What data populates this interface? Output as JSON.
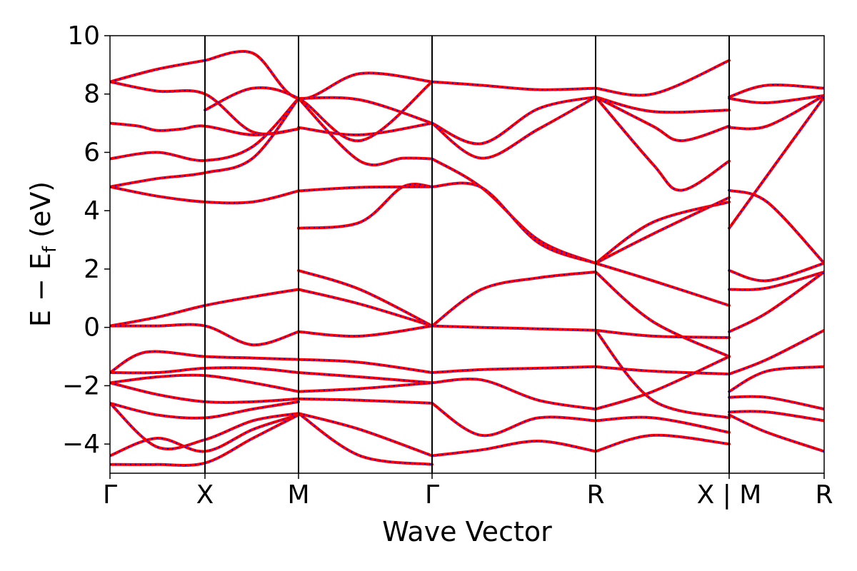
{
  "chart_data": {
    "type": "line",
    "title": "",
    "xlabel": "Wave Vector",
    "ylabel_parts": {
      "main": "E − E",
      "sub": "f",
      "unit": " (eV)"
    },
    "ylim": [
      -5,
      10
    ],
    "yticks": [
      -4,
      -2,
      0,
      2,
      4,
      6,
      8,
      10
    ],
    "ytick_labels": [
      "−4",
      "−2",
      "0",
      "2",
      "4",
      "6",
      "8",
      "10"
    ],
    "kpath_distance_range": [
      0,
      1
    ],
    "high_symmetry_points": [
      {
        "label": "Γ",
        "position": 0.0
      },
      {
        "label": "X",
        "position": 0.133
      },
      {
        "label": "M",
        "position": 0.264
      },
      {
        "label": "Γ",
        "position": 0.451
      },
      {
        "label": "R",
        "position": 0.68
      },
      {
        "label": "X | M",
        "position": 0.867
      },
      {
        "label": "R",
        "position": 1.0
      }
    ],
    "styles": {
      "band_color": "#ff0000",
      "overlay_color": "#0000ff",
      "vline_color": "#000000"
    },
    "series_note_visible": false,
    "bands": [
      {
        "x": [
          0,
          0.066,
          0.133
        ],
        "y": [
          8.42,
          8.85,
          9.15
        ]
      },
      {
        "x": [
          0,
          0.066,
          0.133,
          0.2,
          0.264
        ],
        "y": [
          8.42,
          8.1,
          8.0,
          6.7,
          6.8
        ]
      },
      {
        "x": [
          0,
          0.04,
          0.066,
          0.1,
          0.133,
          0.2,
          0.264
        ],
        "y": [
          7.0,
          6.9,
          6.75,
          6.8,
          6.9,
          6.6,
          6.8
        ]
      },
      {
        "x": [
          0,
          0.066,
          0.133,
          0.2,
          0.264
        ],
        "y": [
          5.78,
          6.0,
          5.72,
          6.2,
          7.85
        ]
      },
      {
        "x": [
          0,
          0.066,
          0.133,
          0.2,
          0.264
        ],
        "y": [
          4.82,
          5.1,
          5.3,
          5.8,
          7.85
        ]
      },
      {
        "x": [
          0,
          0.066,
          0.133,
          0.2,
          0.264
        ],
        "y": [
          4.82,
          4.5,
          4.3,
          4.3,
          4.68
        ]
      },
      {
        "x": [
          0,
          0.066,
          0.133,
          0.2,
          0.264
        ],
        "y": [
          0.05,
          0.35,
          0.75,
          1.05,
          1.3
        ]
      },
      {
        "x": [
          0,
          0.066,
          0.133,
          0.2,
          0.264
        ],
        "y": [
          0.05,
          0.05,
          0.05,
          -0.6,
          -0.15
        ]
      },
      {
        "x": [
          0,
          0.05,
          0.133,
          0.2,
          0.264
        ],
        "y": [
          -1.55,
          -0.85,
          -1.0,
          -1.05,
          -1.1
        ]
      },
      {
        "x": [
          0,
          0.066,
          0.133,
          0.2,
          0.264
        ],
        "y": [
          -1.55,
          -1.55,
          -1.4,
          -1.4,
          -1.55
        ]
      },
      {
        "x": [
          0,
          0.066,
          0.133,
          0.2,
          0.264
        ],
        "y": [
          -1.9,
          -1.7,
          -1.65,
          -1.9,
          -2.2
        ]
      },
      {
        "x": [
          0,
          0.066,
          0.133,
          0.2,
          0.264
        ],
        "y": [
          -1.9,
          -2.3,
          -2.55,
          -2.55,
          -2.45
        ]
      },
      {
        "x": [
          0,
          0.066,
          0.133,
          0.2,
          0.264
        ],
        "y": [
          -2.6,
          -3.0,
          -3.1,
          -2.8,
          -2.55
        ]
      },
      {
        "x": [
          0,
          0.066,
          0.133,
          0.2,
          0.264
        ],
        "y": [
          -2.6,
          -4.1,
          -3.85,
          -3.2,
          -2.95
        ]
      },
      {
        "x": [
          0,
          0.066,
          0.133,
          0.2,
          0.264
        ],
        "y": [
          -4.4,
          -3.8,
          -4.25,
          -3.5,
          -3.0
        ]
      },
      {
        "x": [
          0,
          0.066,
          0.133,
          0.2,
          0.264
        ],
        "y": [
          -4.7,
          -4.7,
          -4.65,
          -3.8,
          -3.0
        ]
      },
      {
        "x": [
          0.133,
          0.2,
          0.264,
          0.35,
          0.451
        ],
        "y": [
          9.15,
          9.4,
          7.85,
          8.7,
          8.42
        ]
      },
      {
        "x": [
          0.133,
          0.2,
          0.264,
          0.35,
          0.451
        ],
        "y": [
          7.45,
          8.2,
          7.85,
          6.4,
          8.42
        ]
      },
      {
        "x": [
          0.264,
          0.35,
          0.451
        ],
        "y": [
          7.85,
          7.8,
          7.0
        ]
      },
      {
        "x": [
          0.264,
          0.35,
          0.451
        ],
        "y": [
          6.85,
          6.6,
          7.0
        ]
      },
      {
        "x": [
          0.264,
          0.35,
          0.41,
          0.451
        ],
        "y": [
          7.85,
          5.7,
          5.8,
          5.78
        ]
      },
      {
        "x": [
          0.264,
          0.35,
          0.451
        ],
        "y": [
          4.68,
          4.8,
          4.82
        ]
      },
      {
        "x": [
          0.264,
          0.35,
          0.41,
          0.451
        ],
        "y": [
          3.4,
          3.6,
          4.82,
          4.82
        ]
      },
      {
        "x": [
          0.264,
          0.35,
          0.451
        ],
        "y": [
          1.95,
          1.3,
          0.05
        ]
      },
      {
        "x": [
          0.264,
          0.35,
          0.451
        ],
        "y": [
          1.3,
          0.8,
          0.05
        ]
      },
      {
        "x": [
          0.264,
          0.35,
          0.451
        ],
        "y": [
          -0.15,
          -0.3,
          0.05
        ]
      },
      {
        "x": [
          0.264,
          0.35,
          0.451
        ],
        "y": [
          -1.1,
          -1.2,
          -1.55
        ]
      },
      {
        "x": [
          0.264,
          0.35,
          0.451
        ],
        "y": [
          -1.55,
          -1.7,
          -1.9
        ]
      },
      {
        "x": [
          0.264,
          0.35,
          0.451
        ],
        "y": [
          -2.2,
          -2.1,
          -1.9
        ]
      },
      {
        "x": [
          0.264,
          0.35,
          0.451
        ],
        "y": [
          -2.45,
          -2.5,
          -2.6
        ]
      },
      {
        "x": [
          0.264,
          0.35,
          0.451
        ],
        "y": [
          -2.95,
          -3.5,
          -4.4
        ]
      },
      {
        "x": [
          0.264,
          0.35,
          0.451
        ],
        "y": [
          -2.95,
          -4.4,
          -4.7
        ]
      },
      {
        "x": [
          0.451,
          0.52,
          0.6,
          0.68
        ],
        "y": [
          8.42,
          8.3,
          8.15,
          8.2
        ]
      },
      {
        "x": [
          0.451,
          0.52,
          0.6,
          0.68
        ],
        "y": [
          7.0,
          5.8,
          6.8,
          7.9
        ]
      },
      {
        "x": [
          0.451,
          0.52,
          0.6,
          0.68
        ],
        "y": [
          7.0,
          6.3,
          7.5,
          7.9
        ]
      },
      {
        "x": [
          0.451,
          0.52,
          0.6,
          0.68
        ],
        "y": [
          5.78,
          4.8,
          3.0,
          2.2
        ]
      },
      {
        "x": [
          0.451,
          0.52,
          0.6,
          0.68
        ],
        "y": [
          4.82,
          4.8,
          2.9,
          2.2
        ]
      },
      {
        "x": [
          0.451,
          0.52,
          0.6,
          0.68
        ],
        "y": [
          0.05,
          1.3,
          1.7,
          1.9
        ]
      },
      {
        "x": [
          0.451,
          0.52,
          0.6,
          0.68
        ],
        "y": [
          0.05,
          0.0,
          -0.05,
          -0.1
        ]
      },
      {
        "x": [
          0.451,
          0.52,
          0.6,
          0.68
        ],
        "y": [
          -1.55,
          -1.45,
          -1.4,
          -1.35
        ]
      },
      {
        "x": [
          0.451,
          0.52,
          0.6,
          0.68
        ],
        "y": [
          -1.9,
          -1.8,
          -2.5,
          -2.8
        ]
      },
      {
        "x": [
          0.451,
          0.52,
          0.6,
          0.68
        ],
        "y": [
          -2.6,
          -3.7,
          -3.1,
          -3.2
        ]
      },
      {
        "x": [
          0.451,
          0.52,
          0.6,
          0.68
        ],
        "y": [
          -4.4,
          -4.2,
          -3.9,
          -4.25
        ]
      },
      {
        "x": [
          0.68,
          0.76,
          0.867
        ],
        "y": [
          8.2,
          8.0,
          9.15
        ]
      },
      {
        "x": [
          0.68,
          0.76,
          0.867
        ],
        "y": [
          7.9,
          7.4,
          7.45
        ]
      },
      {
        "x": [
          0.68,
          0.76,
          0.8,
          0.867
        ],
        "y": [
          7.9,
          6.9,
          6.4,
          6.9
        ]
      },
      {
        "x": [
          0.68,
          0.76,
          0.8,
          0.867
        ],
        "y": [
          7.9,
          5.6,
          4.7,
          5.7
        ]
      },
      {
        "x": [
          0.68,
          0.76,
          0.867
        ],
        "y": [
          2.2,
          3.6,
          4.3
        ]
      },
      {
        "x": [
          0.68,
          0.76,
          0.867
        ],
        "y": [
          2.2,
          3.2,
          4.45
        ]
      },
      {
        "x": [
          0.68,
          0.76,
          0.867
        ],
        "y": [
          2.2,
          1.6,
          0.75
        ]
      },
      {
        "x": [
          0.68,
          0.76,
          0.867
        ],
        "y": [
          1.9,
          0.2,
          -1.0
        ]
      },
      {
        "x": [
          0.68,
          0.76,
          0.867
        ],
        "y": [
          -0.1,
          -0.3,
          -0.35
        ]
      },
      {
        "x": [
          0.68,
          0.76,
          0.867
        ],
        "y": [
          -1.35,
          -1.5,
          -1.6
        ]
      },
      {
        "x": [
          0.68,
          0.76,
          0.867
        ],
        "y": [
          -0.1,
          -2.5,
          -3.1
        ]
      },
      {
        "x": [
          0.68,
          0.76,
          0.867
        ],
        "y": [
          -2.8,
          -2.2,
          -1.0
        ]
      },
      {
        "x": [
          0.68,
          0.76,
          0.867
        ],
        "y": [
          -3.2,
          -3.1,
          -3.6
        ]
      },
      {
        "x": [
          0.68,
          0.76,
          0.867
        ],
        "y": [
          -4.25,
          -3.7,
          -4.0
        ]
      },
      {
        "x": [
          0.867,
          0.92,
          1.0
        ],
        "y": [
          7.9,
          8.3,
          8.2
        ]
      },
      {
        "x": [
          0.867,
          0.92,
          1.0
        ],
        "y": [
          7.85,
          7.7,
          7.95
        ]
      },
      {
        "x": [
          0.867,
          0.92,
          1.0
        ],
        "y": [
          6.85,
          6.9,
          7.95
        ]
      },
      {
        "x": [
          0.867,
          0.92,
          1.0
        ],
        "y": [
          4.7,
          4.3,
          2.2
        ]
      },
      {
        "x": [
          0.867,
          0.92,
          1.0
        ],
        "y": [
          3.4,
          5.2,
          7.9
        ]
      },
      {
        "x": [
          0.867,
          0.92,
          1.0
        ],
        "y": [
          1.95,
          1.6,
          2.2
        ]
      },
      {
        "x": [
          0.867,
          0.92,
          1.0
        ],
        "y": [
          1.3,
          1.35,
          1.9
        ]
      },
      {
        "x": [
          0.867,
          0.92,
          1.0
        ],
        "y": [
          -0.15,
          0.5,
          1.9
        ]
      },
      {
        "x": [
          0.867,
          0.92,
          1.0
        ],
        "y": [
          -1.6,
          -1.1,
          -0.1
        ]
      },
      {
        "x": [
          0.867,
          0.92,
          1.0
        ],
        "y": [
          -2.2,
          -1.5,
          -1.35
        ]
      },
      {
        "x": [
          0.867,
          0.92,
          1.0
        ],
        "y": [
          -2.4,
          -2.4,
          -2.8
        ]
      },
      {
        "x": [
          0.867,
          0.92,
          1.0
        ],
        "y": [
          -2.9,
          -2.9,
          -3.2
        ]
      },
      {
        "x": [
          0.867,
          0.92,
          1.0
        ],
        "y": [
          -3.0,
          -3.6,
          -4.25
        ]
      }
    ]
  }
}
